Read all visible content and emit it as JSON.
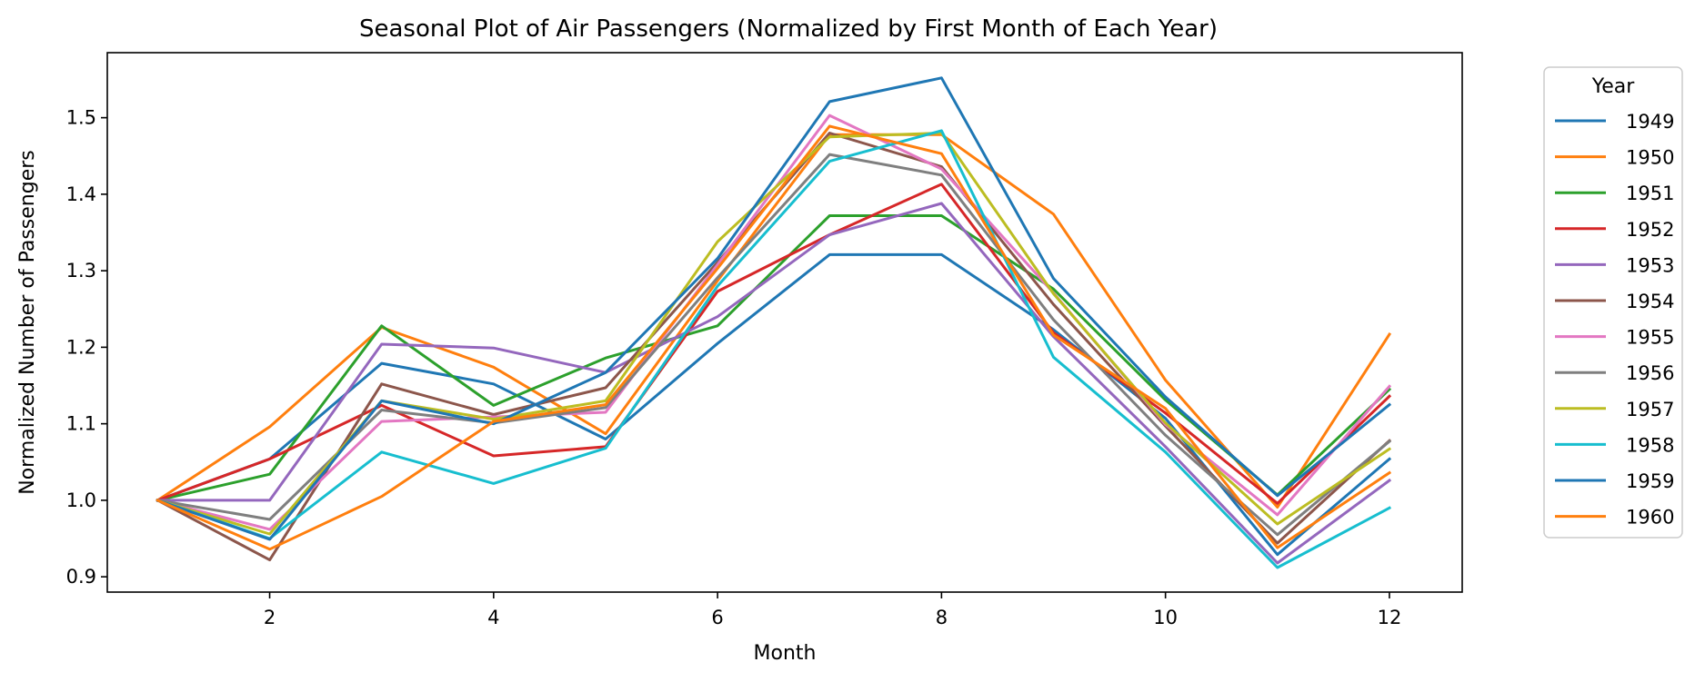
{
  "chart_data": {
    "type": "line",
    "title": "Seasonal Plot of Air Passengers (Normalized by First Month of Each Year)",
    "xlabel": "Month",
    "ylabel": "Normalized Number of Passengers",
    "xlim": [
      0.55,
      12.65
    ],
    "ylim": [
      0.88,
      1.585
    ],
    "xticks": [
      2,
      4,
      6,
      8,
      10,
      12
    ],
    "yticks": [
      0.9,
      1.0,
      1.1,
      1.2,
      1.3,
      1.4,
      1.5
    ],
    "ytick_labels": [
      "0.9",
      "1.0",
      "1.1",
      "1.2",
      "1.3",
      "1.4",
      "1.5"
    ],
    "grid": false,
    "legend_title": "Year",
    "legend_position": "outside-right",
    "x": [
      1,
      2,
      3,
      4,
      5,
      6,
      7,
      8,
      9,
      10,
      11,
      12
    ],
    "series": [
      {
        "name": "1949",
        "color": "#1f77b4",
        "values": [
          1.0,
          1.054,
          1.179,
          1.152,
          1.08,
          1.205,
          1.321,
          1.321,
          1.223,
          1.107,
          0.929,
          1.054
        ]
      },
      {
        "name": "1950",
        "color": "#ff7f0e",
        "values": [
          1.0,
          1.096,
          1.226,
          1.174,
          1.087,
          1.287,
          1.478,
          1.478,
          1.374,
          1.157,
          0.991,
          1.217
        ]
      },
      {
        "name": "1951",
        "color": "#2ca02c",
        "values": [
          1.0,
          1.034,
          1.228,
          1.124,
          1.186,
          1.228,
          1.372,
          1.372,
          1.276,
          1.131,
          1.007,
          1.145
        ]
      },
      {
        "name": "1952",
        "color": "#d62728",
        "values": [
          1.0,
          1.054,
          1.124,
          1.058,
          1.07,
          1.273,
          1.347,
          1.413,
          1.219,
          1.114,
          0.996,
          1.136
        ]
      },
      {
        "name": "1953",
        "color": "#9467bd",
        "values": [
          1.0,
          1.0,
          1.204,
          1.199,
          1.167,
          1.24,
          1.347,
          1.388,
          1.214,
          1.07,
          0.918,
          1.026
        ]
      },
      {
        "name": "1954",
        "color": "#8c564b",
        "values": [
          1.0,
          0.922,
          1.152,
          1.112,
          1.147,
          1.311,
          1.48,
          1.436,
          1.256,
          1.097,
          0.944,
          1.078
        ]
      },
      {
        "name": "1955",
        "color": "#e377c2",
        "values": [
          1.0,
          0.962,
          1.103,
          1.109,
          1.115,
          1.308,
          1.503,
          1.433,
          1.271,
          1.099,
          0.981,
          1.149
        ]
      },
      {
        "name": "1956",
        "color": "#7f7f7f",
        "values": [
          1.0,
          0.975,
          1.118,
          1.101,
          1.121,
          1.291,
          1.452,
          1.425,
          1.236,
          1.085,
          0.955,
          1.077
        ]
      },
      {
        "name": "1957",
        "color": "#bcbd22",
        "values": [
          1.0,
          0.956,
          1.13,
          1.106,
          1.13,
          1.338,
          1.475,
          1.48,
          1.27,
          1.101,
          0.969,
          1.067
        ]
      },
      {
        "name": "1958",
        "color": "#17becf",
        "values": [
          1.0,
          0.95,
          1.063,
          1.022,
          1.068,
          1.28,
          1.443,
          1.483,
          1.187,
          1.063,
          0.912,
          0.99
        ]
      },
      {
        "name": "1959",
        "color": "#1f77b4",
        "values": [
          1.0,
          0.949,
          1.13,
          1.1,
          1.167,
          1.316,
          1.521,
          1.552,
          1.29,
          1.135,
          1.006,
          1.125
        ]
      },
      {
        "name": "1960",
        "color": "#ff7f0e",
        "values": [
          1.0,
          0.936,
          1.005,
          1.103,
          1.125,
          1.303,
          1.489,
          1.453,
          1.216,
          1.12,
          0.938,
          1.036
        ]
      }
    ]
  }
}
